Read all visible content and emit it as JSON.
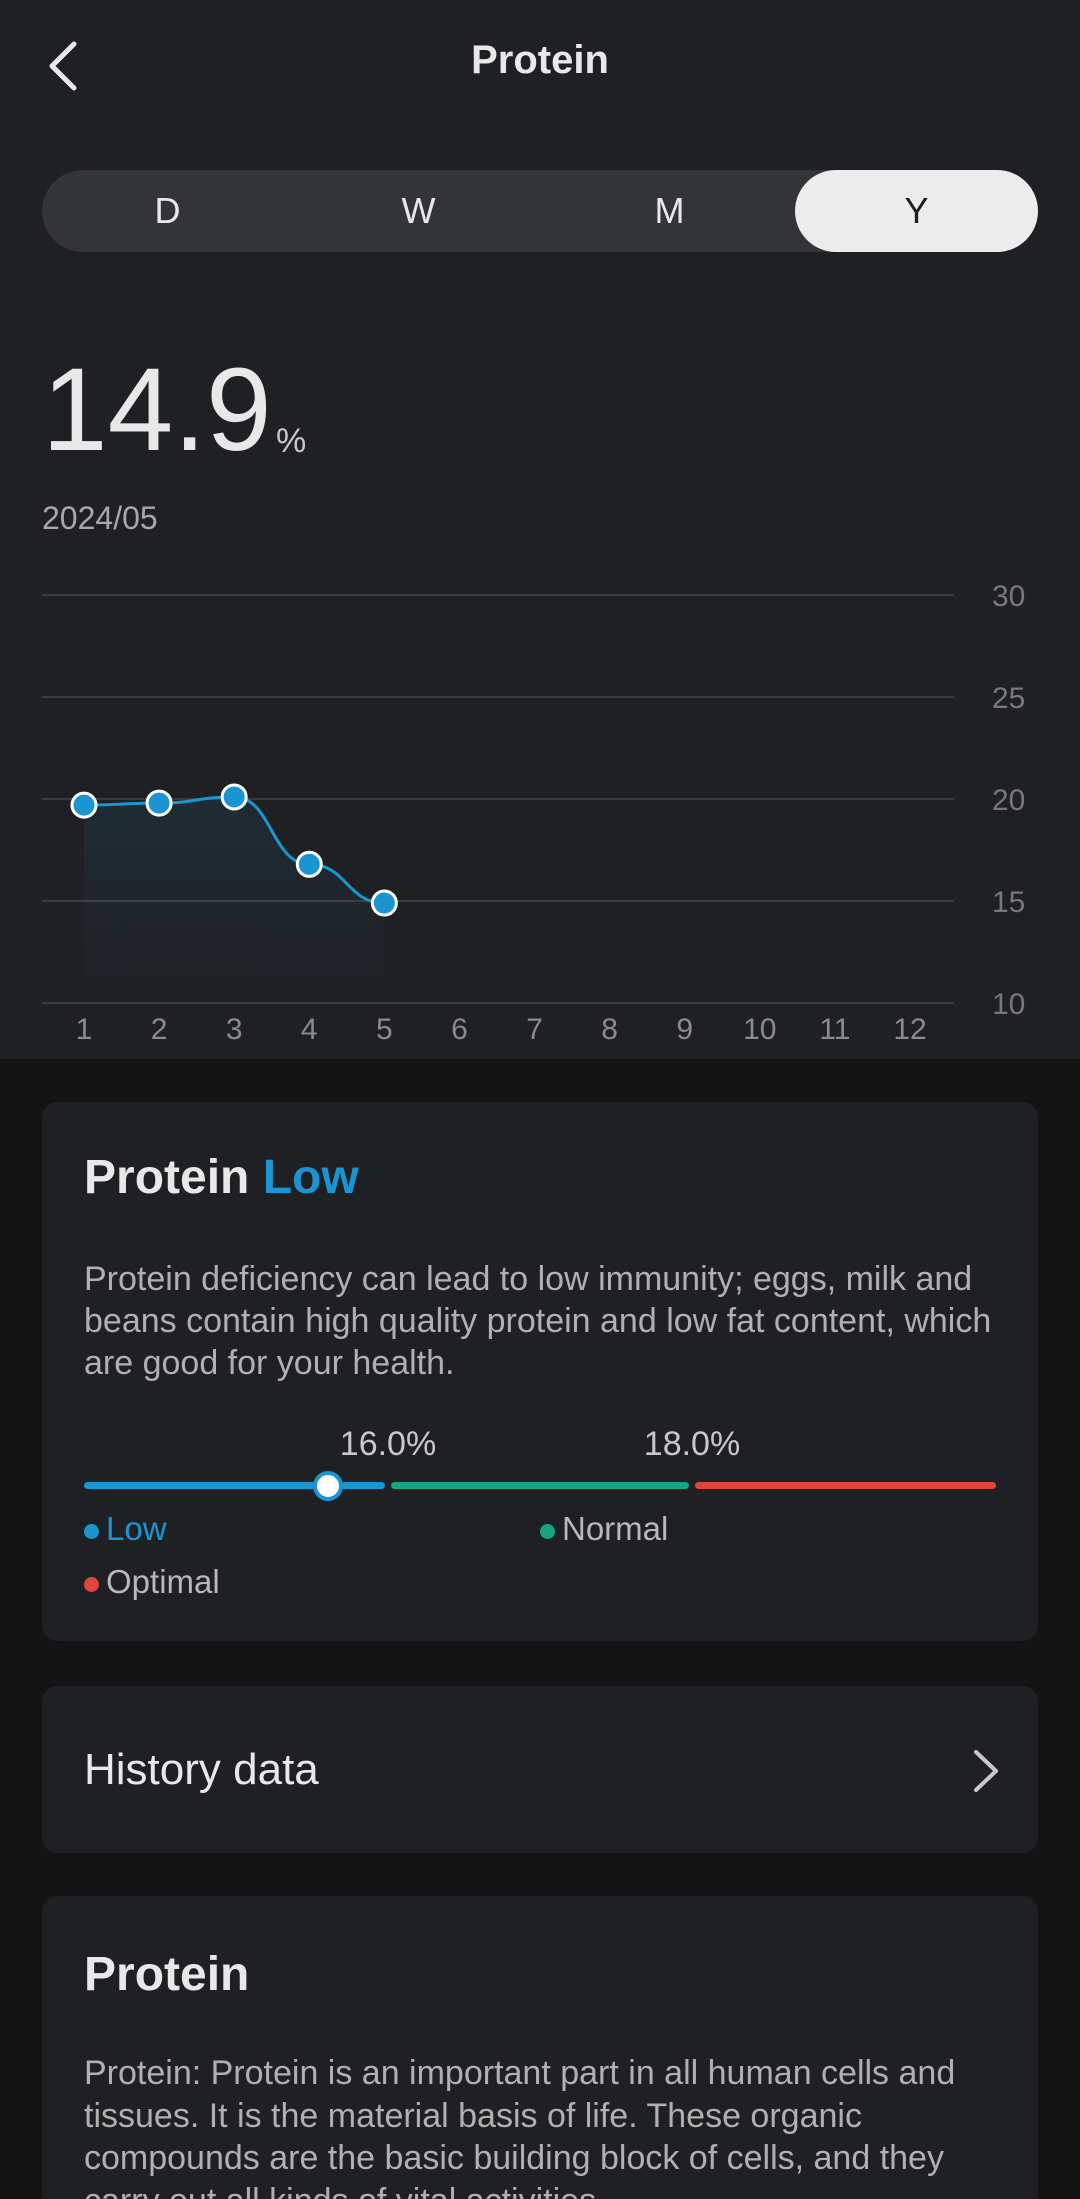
{
  "header": {
    "title": "Protein"
  },
  "tabs": [
    "D",
    "W",
    "M",
    "Y"
  ],
  "selected_tab": 3,
  "current": {
    "value": 14.9,
    "unit": "%",
    "date": "2024/05"
  },
  "chart_data": {
    "type": "line",
    "categories": [
      1,
      2,
      3,
      4,
      5,
      6,
      7,
      8,
      9,
      10,
      11,
      12
    ],
    "values": [
      19.7,
      19.8,
      20.1,
      16.8,
      14.9,
      null,
      null,
      null,
      null,
      null,
      null,
      null
    ],
    "color": "#1b95d1",
    "ylim": [
      10,
      30
    ],
    "yticks": [
      10,
      15,
      20,
      25,
      30
    ],
    "grid": true
  },
  "status": {
    "title": "Protein",
    "level": "Low",
    "description": "Protein deficiency can lead to low immunity; eggs, milk and beans contain high quality protein and low fat content, which are good for your health.",
    "thresholds": [
      {
        "value": 16,
        "label": "16.0%"
      },
      {
        "value": 18,
        "label": "18.0%"
      }
    ],
    "legend": [
      {
        "name": "Low",
        "color": "#1b95d1"
      },
      {
        "name": "Normal",
        "color": "#1aa37f"
      },
      {
        "name": "Optimal",
        "color": "#e0453b"
      }
    ]
  },
  "history": {
    "label": "History data"
  },
  "about": {
    "title": "Protein",
    "text": "Protein: Protein is an important part in all human cells and tissues. It is the material basis of life. These organic compounds are the basic building block of cells, and they carry out all kinds of vital activities"
  }
}
